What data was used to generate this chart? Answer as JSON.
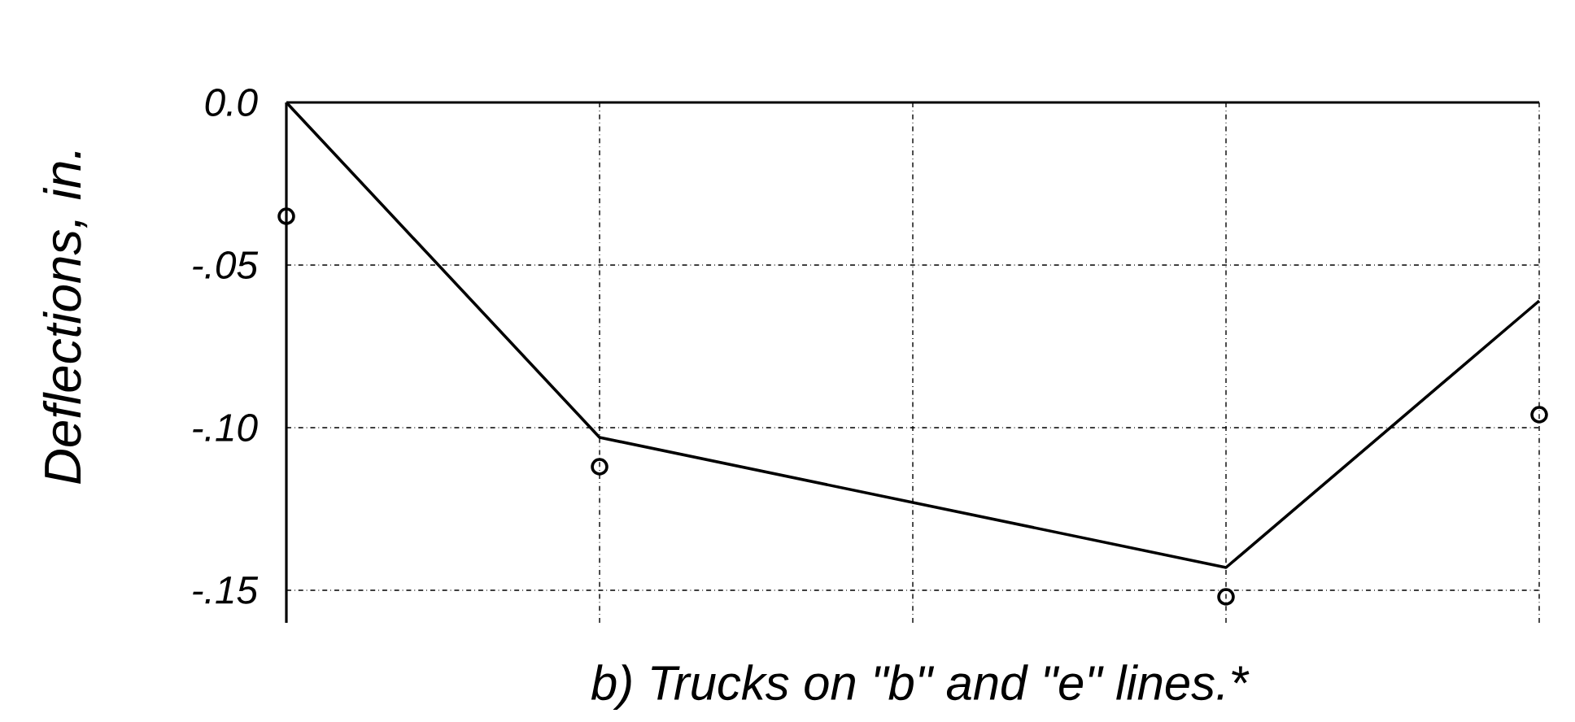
{
  "chart_data": {
    "type": "line",
    "ylabel": "Deflections, in.",
    "annotations": [
      "b) Trucks on \"b\" and \"e\" lines.*"
    ],
    "categories": [
      null,
      null,
      null,
      null,
      null
    ],
    "ylim": [
      -0.16,
      0
    ],
    "yticks": [
      {
        "value": 0,
        "label": "0.0"
      },
      {
        "value": -0.05,
        "label": "-.05"
      },
      {
        "value": -0.1,
        "label": "-.10"
      },
      {
        "value": -0.15,
        "label": "-.15"
      }
    ],
    "tick_labels": "y",
    "grid": true,
    "series": [
      {
        "color": "#000000",
        "marker": "none",
        "line_style": "solid",
        "values": [
          0,
          -0.103,
          -0.123,
          -0.143,
          -0.061
        ]
      },
      {
        "type": "scatter",
        "color": "#000000",
        "marker": "circle",
        "values": [
          -0.035,
          -0.112,
          null,
          -0.152,
          -0.096
        ]
      }
    ]
  }
}
